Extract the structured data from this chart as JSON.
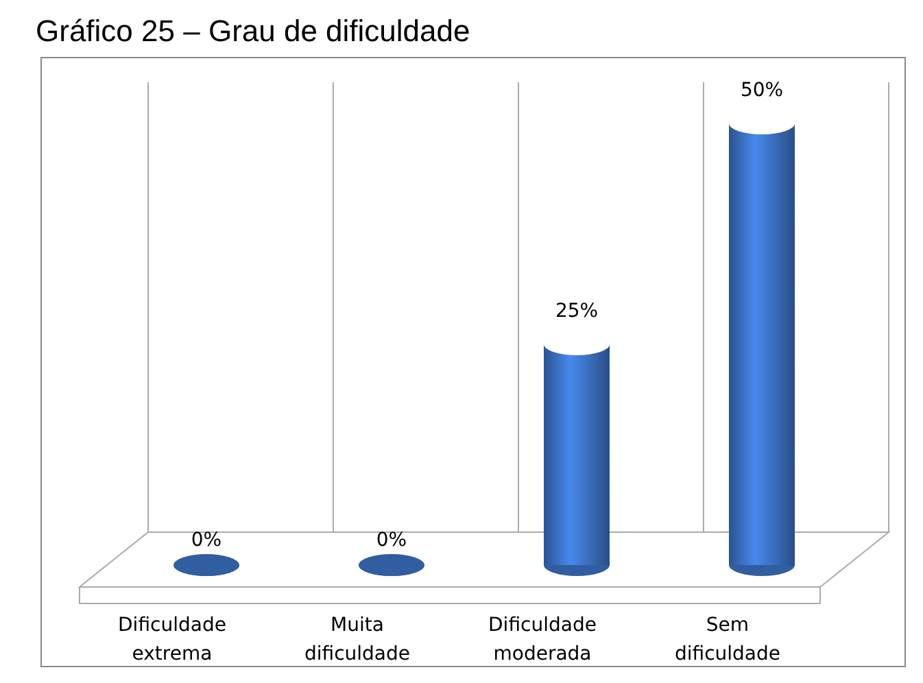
{
  "chart_data": {
    "type": "bar",
    "title": "Gráfico 25 – Grau de dificuldade",
    "categories": [
      "Dificuldade extrema",
      "Muita dificuldade",
      "Dificuldade moderada",
      "Sem dificuldade"
    ],
    "values": [
      0,
      0,
      25,
      50
    ],
    "color": "#3a6fc0",
    "value_labels": [
      "0%",
      "0%",
      "25%",
      "50%"
    ]
  }
}
